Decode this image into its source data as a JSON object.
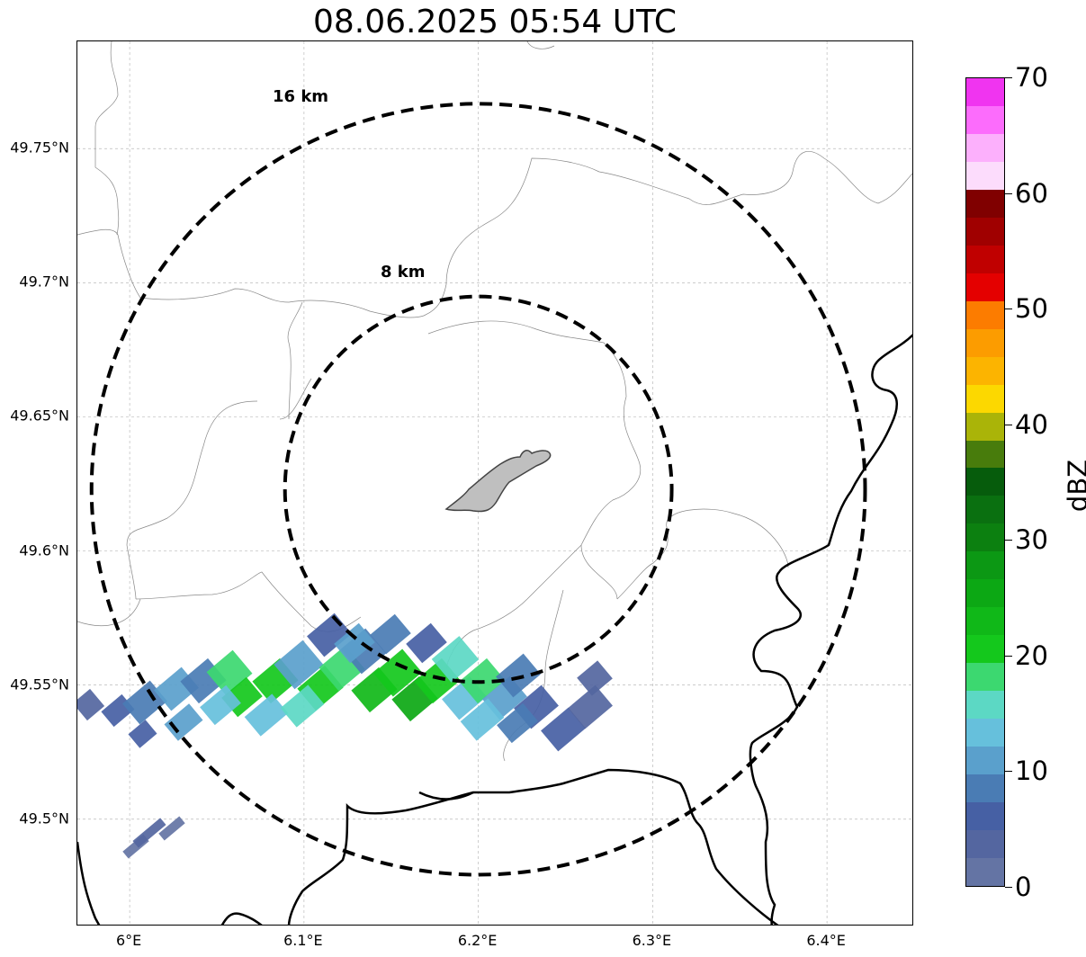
{
  "title": "08.06.2025 05:54 UTC",
  "map": {
    "lon_range": [
      5.97,
      6.45
    ],
    "lat_range": [
      49.46,
      49.79
    ],
    "gridlines": true,
    "lat_ticks": [
      {
        "value": 49.75,
        "label": "49.75°N"
      },
      {
        "value": 49.7,
        "label": "49.7°N"
      },
      {
        "value": 49.65,
        "label": "49.65°N"
      },
      {
        "value": 49.6,
        "label": "49.6°N"
      },
      {
        "value": 49.55,
        "label": "49.55°N"
      },
      {
        "value": 49.5,
        "label": "49.5°N"
      }
    ],
    "lon_ticks": [
      {
        "value": 6.0,
        "label": "6°E"
      },
      {
        "value": 6.1,
        "label": "6.1°E"
      },
      {
        "value": 6.2,
        "label": "6.2°E"
      },
      {
        "value": 6.3,
        "label": "6.3°E"
      },
      {
        "value": 6.4,
        "label": "6.4°E"
      }
    ],
    "center": {
      "lon": 6.2,
      "lat": 49.623
    },
    "range_rings": [
      {
        "radius_km": 8,
        "label": "8 km"
      },
      {
        "radius_km": 16,
        "label": "16 km"
      }
    ]
  },
  "colorbar": {
    "unit": "dBZ",
    "min": 0,
    "max": 70,
    "step": 2.5,
    "ticks": [
      {
        "value": 0,
        "label": "0"
      },
      {
        "value": 10,
        "label": "10"
      },
      {
        "value": 20,
        "label": "20"
      },
      {
        "value": 30,
        "label": "30"
      },
      {
        "value": 40,
        "label": "40"
      },
      {
        "value": 50,
        "label": "50"
      },
      {
        "value": 60,
        "label": "60"
      },
      {
        "value": 70,
        "label": "70"
      }
    ],
    "colors": [
      "#6474a4",
      "#5466a0",
      "#4660a4",
      "#4a7cb4",
      "#5aa0cc",
      "#66c0dc",
      "#5cd8c4",
      "#3cd870",
      "#14c81c",
      "#10b818",
      "#0ca814",
      "#0c9814",
      "#0c8010",
      "#0a7010",
      "#065c0c",
      "#487c0c",
      "#aab408",
      "#fcd800",
      "#fcb400",
      "#fc9c00",
      "#fc7c00",
      "#e40000",
      "#c00000",
      "#a00000",
      "#800000",
      "#fcdcfc",
      "#fcb0fc",
      "#fc6cfc",
      "#f034f0"
    ]
  }
}
